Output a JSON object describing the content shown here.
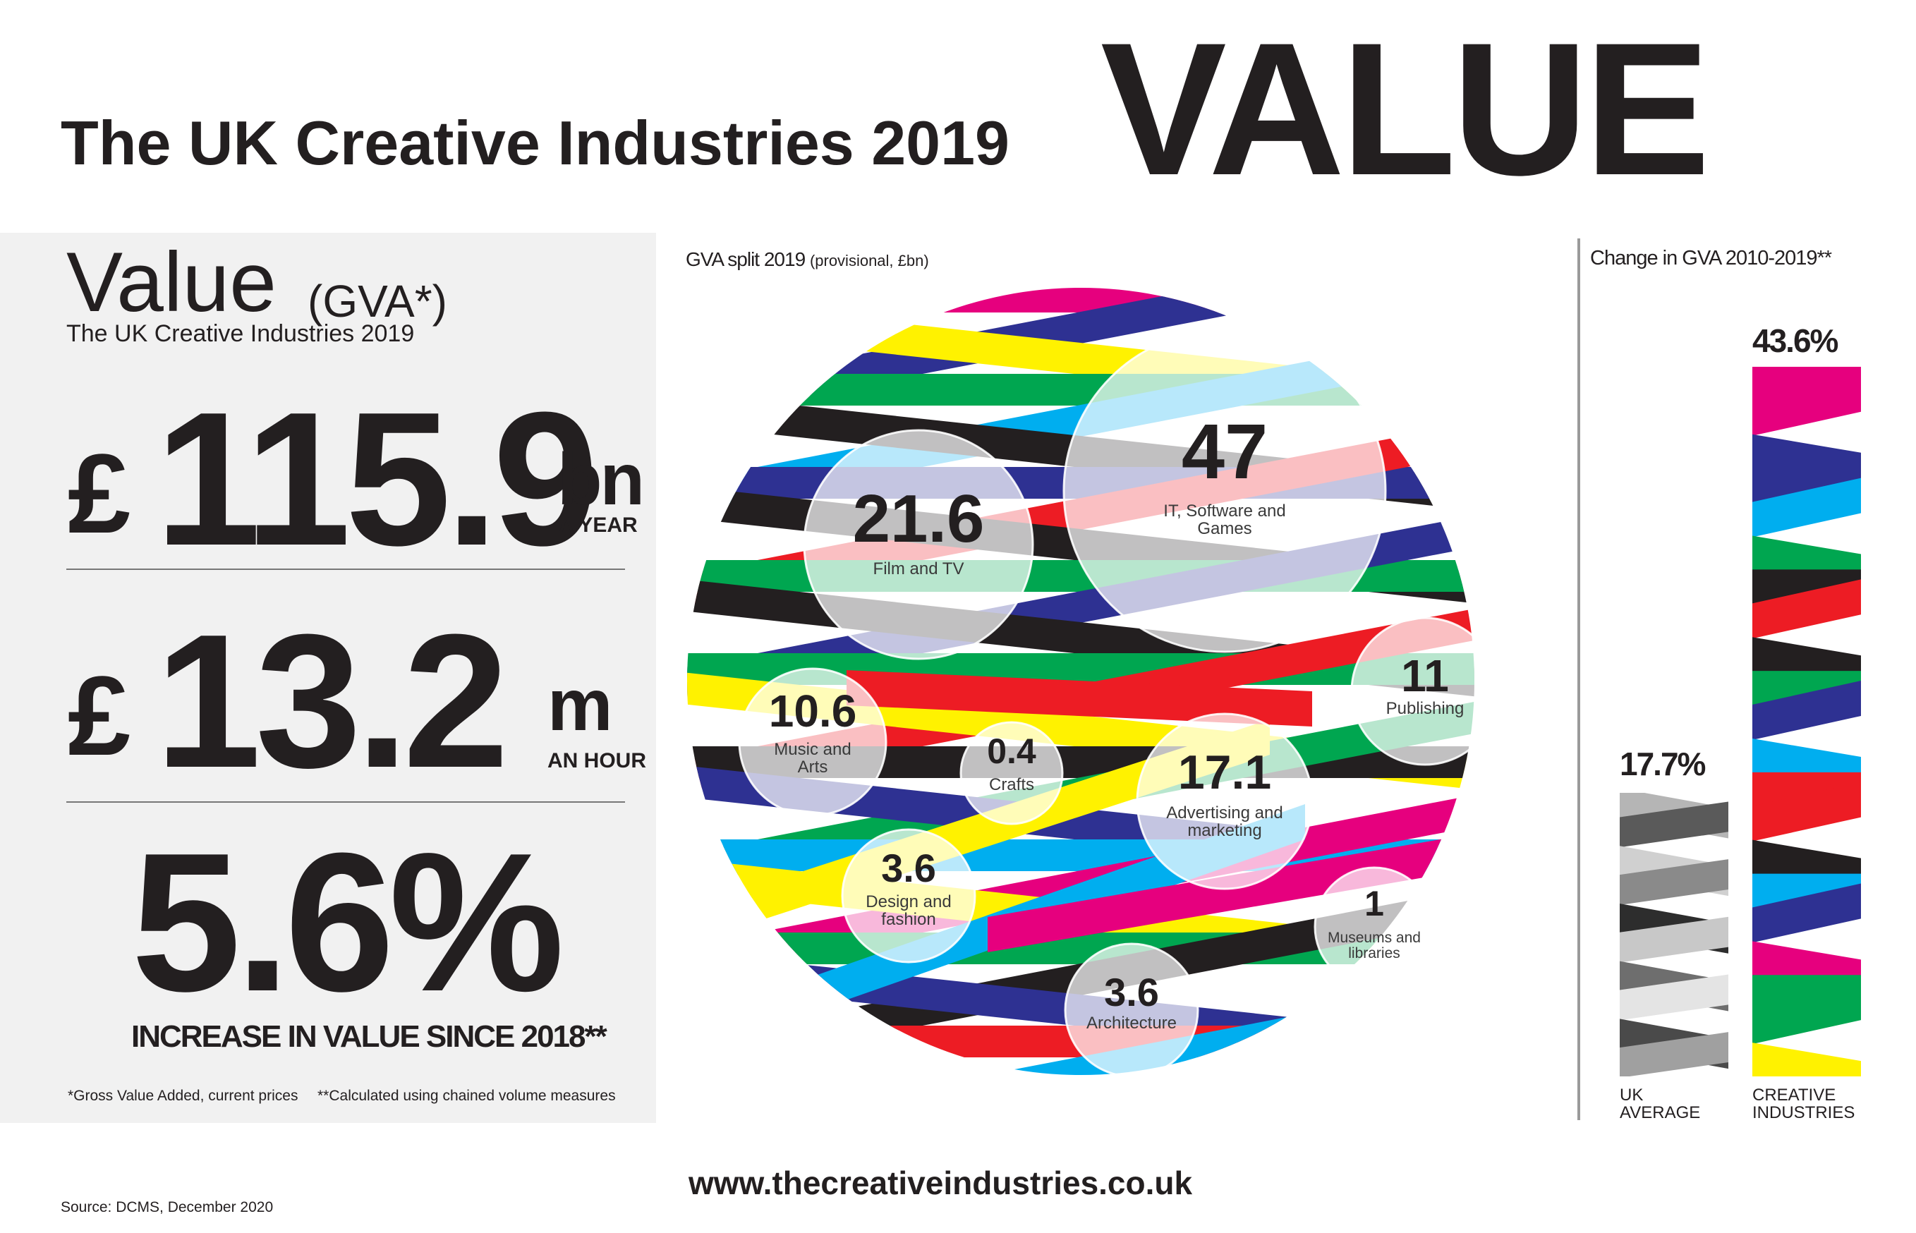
{
  "header": {
    "title": "The UK Creative Industries 2019",
    "title_big": "VALUE"
  },
  "left_panel": {
    "heading": "Value",
    "heading_note": "(GVA*)",
    "subheading": "The UK Creative Industries 2019",
    "stat1": {
      "currency": "£",
      "value": "115.9",
      "unit": "bn",
      "caption": "A YEAR"
    },
    "stat2": {
      "currency": "£",
      "value": "13.2",
      "unit": "m",
      "caption": "AN HOUR"
    },
    "stat3": {
      "value": "5.6%",
      "caption": "INCREASE IN VALUE SINCE 2018**"
    },
    "footnote1": "*Gross Value Added, current prices",
    "footnote2": "**Calculated using chained volume measures"
  },
  "gva_chart_title": "GVA split 2019",
  "gva_chart_title_note": "(provisional, £bn)",
  "bar_chart_title": "Change in GVA  2010-2019**",
  "website": "www.thecreativeindustries.co.uk",
  "source": "Source: DCMS, December 2020",
  "colors": {
    "text": "#231f20",
    "magenta": "#e6007e",
    "blue": "#2e3192",
    "cyan": "#00aeef",
    "green": "#00a650",
    "black": "#231f20",
    "red": "#ed1c24",
    "yellow": "#fff200"
  },
  "chart_data": [
    {
      "type": "bubble",
      "title": "GVA split 2019",
      "subtitle": "(provisional, £bn)",
      "units": "£bn",
      "points": [
        {
          "label": "IT, Software and Games",
          "value": 47,
          "value_text": "47"
        },
        {
          "label": "Film and TV",
          "value": 21.6,
          "value_text": "21.6"
        },
        {
          "label": "Advertising and marketing",
          "value": 17.1,
          "value_text": "17.1"
        },
        {
          "label": "Publishing",
          "value": 11,
          "value_text": "11"
        },
        {
          "label": "Music and Arts",
          "value": 10.6,
          "value_text": "10.6"
        },
        {
          "label": "Design and fashion",
          "value": 3.6,
          "value_text": "3.6"
        },
        {
          "label": "Architecture",
          "value": 3.6,
          "value_text": "3.6"
        },
        {
          "label": "Museums and libraries",
          "value": 1,
          "value_text": "1"
        },
        {
          "label": "Crafts",
          "value": 0.4,
          "value_text": "0.4"
        }
      ]
    },
    {
      "type": "bar",
      "title": "Change in GVA  2010-2019**",
      "categories": [
        "UK AVERAGE",
        "CREATIVE INDUSTRIES"
      ],
      "values": [
        17.7,
        43.6
      ],
      "value_labels": [
        "17.7%",
        "43.6%"
      ],
      "category_lines": [
        [
          "UK",
          "AVERAGE"
        ],
        [
          "CREATIVE",
          "INDUSTRIES"
        ]
      ]
    }
  ]
}
